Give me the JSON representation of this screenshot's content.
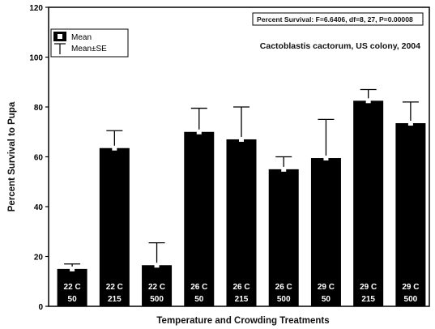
{
  "chart_data": {
    "type": "bar",
    "title": "Cactoblastis cactorum, US colony, 2004",
    "stats_text": "Percent Survival: F=6.6406, df=8, 27, P=0.00008",
    "xlabel": "Temperature and Crowding Treatments",
    "ylabel": "Percent Survival to Pupa",
    "ylim": [
      0,
      120
    ],
    "yticks": [
      0,
      20,
      40,
      60,
      80,
      100,
      120
    ],
    "grid": false,
    "legend": {
      "placement": "top-left",
      "entries": [
        "Mean",
        "Mean±SE"
      ]
    },
    "categories": [
      {
        "temp": "22 C",
        "density": "50"
      },
      {
        "temp": "22 C",
        "density": "215"
      },
      {
        "temp": "22 C",
        "density": "500"
      },
      {
        "temp": "26 C",
        "density": "50"
      },
      {
        "temp": "26 C",
        "density": "215"
      },
      {
        "temp": "26 C",
        "density": "500"
      },
      {
        "temp": "29 C",
        "density": "50"
      },
      {
        "temp": "29 C",
        "density": "215"
      },
      {
        "temp": "29 C",
        "density": "500"
      }
    ],
    "series": [
      {
        "values": [
          15,
          63.5,
          16.5,
          70,
          67,
          55,
          59.5,
          82.5,
          73.5
        ],
        "upper_se": [
          17,
          70.5,
          25.5,
          79.5,
          80,
          60,
          75,
          87,
          82
        ]
      }
    ],
    "colors": {
      "bar": "#000000",
      "background": "#ffffff"
    }
  }
}
